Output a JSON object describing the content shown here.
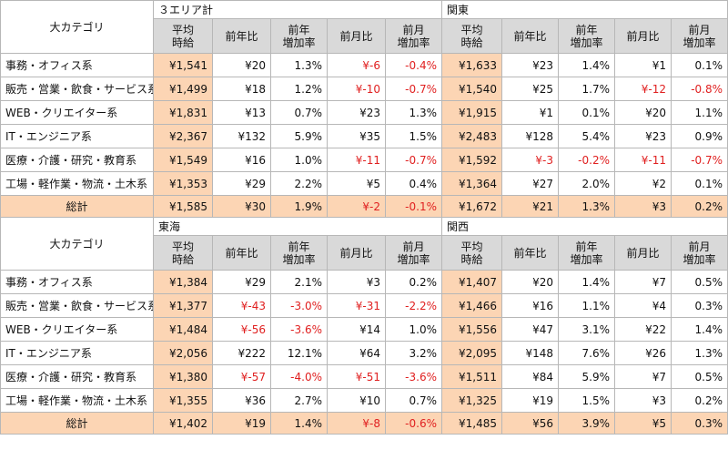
{
  "blocks": [
    {
      "category_header": "大カテゴリ",
      "region_left": "３エリア計",
      "region_right": "関東",
      "headers": [
        [
          "平均",
          "時給"
        ],
        [
          "前年比"
        ],
        [
          "前年",
          "増加率"
        ],
        [
          "前月比"
        ],
        [
          "前月",
          "増加率"
        ],
        [
          "平均",
          "時給"
        ],
        [
          "前年比"
        ],
        [
          "前年",
          "増加率"
        ],
        [
          "前月比"
        ],
        [
          "前月",
          "増加率"
        ]
      ],
      "rows": [
        {
          "category": "事務・オフィス系",
          "values": [
            "¥1,541",
            "¥20",
            "1.3%",
            "¥-6",
            "-0.4%",
            "¥1,633",
            "¥23",
            "1.4%",
            "¥1",
            "0.1%"
          ]
        },
        {
          "category": "販売・営業・飲食・サービス系",
          "values": [
            "¥1,499",
            "¥18",
            "1.2%",
            "¥-10",
            "-0.7%",
            "¥1,540",
            "¥25",
            "1.7%",
            "¥-12",
            "-0.8%"
          ]
        },
        {
          "category": "WEB・クリエイター系",
          "values": [
            "¥1,831",
            "¥13",
            "0.7%",
            "¥23",
            "1.3%",
            "¥1,915",
            "¥1",
            "0.1%",
            "¥20",
            "1.1%"
          ]
        },
        {
          "category": "IT・エンジニア系",
          "values": [
            "¥2,367",
            "¥132",
            "5.9%",
            "¥35",
            "1.5%",
            "¥2,483",
            "¥128",
            "5.4%",
            "¥23",
            "0.9%"
          ]
        },
        {
          "category": "医療・介護・研究・教育系",
          "values": [
            "¥1,549",
            "¥16",
            "1.0%",
            "¥-11",
            "-0.7%",
            "¥1,592",
            "¥-3",
            "-0.2%",
            "¥-11",
            "-0.7%"
          ]
        },
        {
          "category": "工場・軽作業・物流・土木系",
          "values": [
            "¥1,353",
            "¥29",
            "2.2%",
            "¥5",
            "0.4%",
            "¥1,364",
            "¥27",
            "2.0%",
            "¥2",
            "0.1%"
          ]
        }
      ],
      "total": {
        "label": "総計",
        "values": [
          "¥1,585",
          "¥30",
          "1.9%",
          "¥-2",
          "-0.1%",
          "¥1,672",
          "¥21",
          "1.3%",
          "¥3",
          "0.2%"
        ]
      }
    },
    {
      "category_header": "大カテゴリ",
      "region_left": "東海",
      "region_right": "関西",
      "headers": [
        [
          "平均",
          "時給"
        ],
        [
          "前年比"
        ],
        [
          "前年",
          "増加率"
        ],
        [
          "前月比"
        ],
        [
          "前月",
          "増加率"
        ],
        [
          "平均",
          "時給"
        ],
        [
          "前年比"
        ],
        [
          "前年",
          "増加率"
        ],
        [
          "前月比"
        ],
        [
          "前月",
          "増加率"
        ]
      ],
      "rows": [
        {
          "category": "事務・オフィス系",
          "values": [
            "¥1,384",
            "¥29",
            "2.1%",
            "¥3",
            "0.2%",
            "¥1,407",
            "¥20",
            "1.4%",
            "¥7",
            "0.5%"
          ]
        },
        {
          "category": "販売・営業・飲食・サービス系",
          "values": [
            "¥1,377",
            "¥-43",
            "-3.0%",
            "¥-31",
            "-2.2%",
            "¥1,466",
            "¥16",
            "1.1%",
            "¥4",
            "0.3%"
          ]
        },
        {
          "category": "WEB・クリエイター系",
          "values": [
            "¥1,484",
            "¥-56",
            "-3.6%",
            "¥14",
            "1.0%",
            "¥1,556",
            "¥47",
            "3.1%",
            "¥22",
            "1.4%"
          ]
        },
        {
          "category": "IT・エンジニア系",
          "values": [
            "¥2,056",
            "¥222",
            "12.1%",
            "¥64",
            "3.2%",
            "¥2,095",
            "¥148",
            "7.6%",
            "¥26",
            "1.3%"
          ]
        },
        {
          "category": "医療・介護・研究・教育系",
          "values": [
            "¥1,380",
            "¥-57",
            "-4.0%",
            "¥-51",
            "-3.6%",
            "¥1,511",
            "¥84",
            "5.9%",
            "¥7",
            "0.5%"
          ]
        },
        {
          "category": "工場・軽作業・物流・土木系",
          "values": [
            "¥1,355",
            "¥36",
            "2.7%",
            "¥10",
            "0.7%",
            "¥1,325",
            "¥19",
            "1.5%",
            "¥3",
            "0.2%"
          ]
        }
      ],
      "total": {
        "label": "総計",
        "values": [
          "¥1,402",
          "¥19",
          "1.4%",
          "¥-8",
          "-0.6%",
          "¥1,485",
          "¥56",
          "3.9%",
          "¥5",
          "0.3%"
        ]
      }
    }
  ],
  "colors": {
    "highlight": "#fcd5b4",
    "header_gray": "#d9d9d9",
    "negative": "#e02020",
    "border": "#b7b7b7"
  }
}
